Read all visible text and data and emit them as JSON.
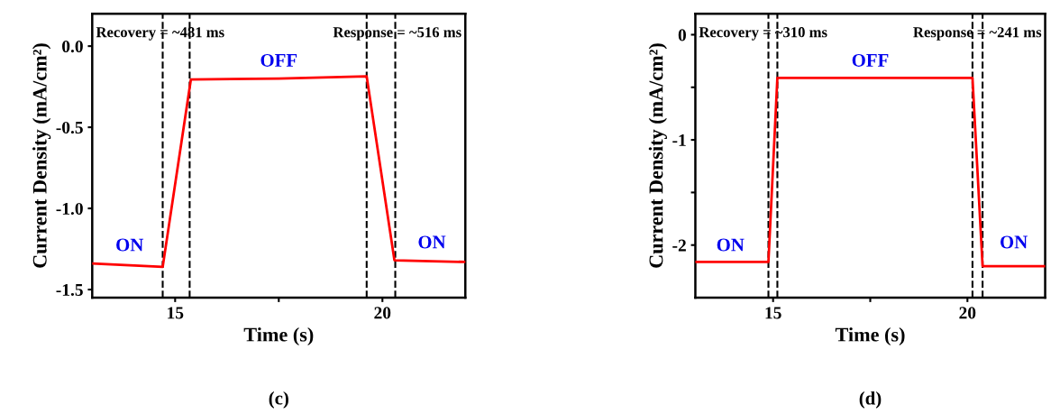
{
  "chart_data": [
    {
      "type": "line",
      "xlabel": "Time (s)",
      "ylabel": "Current Density (mA/cm²)",
      "series": [
        {
          "color": "#ff0000",
          "x": [
            13,
            14.7,
            15.38,
            17.5,
            19.62,
            20.29,
            22
          ],
          "values": [
            -1.34,
            -1.36,
            -0.205,
            -0.2,
            -0.186,
            -1.32,
            -1.33
          ]
        }
      ],
      "xlim": [
        13,
        22
      ],
      "xticks": [
        15,
        {
          "value": 17.5,
          "label": null
        },
        20
      ],
      "ylim": [
        -1.55,
        0.2
      ],
      "yticks": [
        {
          "value": 0,
          "label": "0.0"
        },
        -0.5,
        {
          "value": -1,
          "label": "-1.0"
        },
        -1.5
      ],
      "ref_lines": [
        {
          "axis": "x",
          "value": 14.7,
          "color": "#000000",
          "line_style": "dashed"
        },
        {
          "axis": "x",
          "value": 15.35,
          "color": "#000000",
          "line_style": "dashed"
        },
        {
          "axis": "x",
          "value": 19.62,
          "color": "#000000",
          "line_style": "dashed"
        },
        {
          "axis": "x",
          "value": 20.31,
          "color": "#000000",
          "line_style": "dashed"
        }
      ],
      "annotations": [
        "Recovery = ~481 ms",
        "Response = ~516 ms",
        "(c)",
        "OFF",
        "ON",
        "ON"
      ],
      "grid": false,
      "legend": false,
      "line_style": "solid",
      "marker": "none"
    },
    {
      "type": "line",
      "xlabel": "Time (s)",
      "ylabel": "Current Density (mA/cm²)",
      "series": [
        {
          "color": "#ff0000",
          "x": [
            13,
            14.88,
            15.11,
            17.5,
            20.13,
            20.39,
            22
          ],
          "values": [
            -2.16,
            -2.16,
            -0.41,
            -0.41,
            -0.41,
            -2.2,
            -2.2
          ]
        }
      ],
      "xlim": [
        13,
        22
      ],
      "xticks": [
        15,
        {
          "value": 17.5,
          "label": null
        },
        20
      ],
      "ylim": [
        -2.5,
        0.2
      ],
      "yticks": [
        0,
        {
          "value": -0.5,
          "label": null
        },
        -1,
        {
          "value": -1.5,
          "label": null
        },
        -2
      ],
      "ref_lines": [
        {
          "axis": "x",
          "value": 14.88,
          "color": "#000000",
          "line_style": "dashed"
        },
        {
          "axis": "x",
          "value": 15.11,
          "color": "#000000",
          "line_style": "dashed"
        },
        {
          "axis": "x",
          "value": 20.13,
          "color": "#000000",
          "line_style": "dashed"
        },
        {
          "axis": "x",
          "value": 20.39,
          "color": "#000000",
          "line_style": "dashed"
        }
      ],
      "annotations": [
        "Recovery = ~310 ms",
        "Response = ~241 ms",
        "(d)",
        "OFF",
        "ON",
        "ON"
      ],
      "grid": false,
      "legend": false,
      "line_style": "solid",
      "marker": "none"
    }
  ]
}
